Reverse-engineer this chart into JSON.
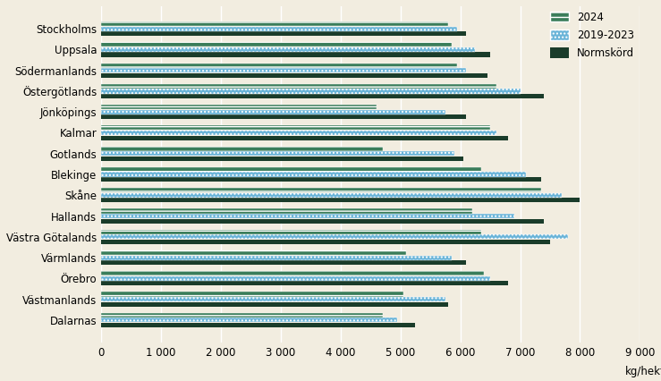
{
  "regions": [
    "Dalarnas",
    "Västmanlands",
    "Örebro",
    "Värmlands",
    "Västra Götalands",
    "Hallands",
    "Skåne",
    "Blekinge",
    "Gotlands",
    "Kalmar",
    "Jönköpings",
    "Östergötlands",
    "Södermanlands",
    "Uppsala",
    "Stockholms"
  ],
  "values_2024": [
    4700,
    5050,
    6400,
    5100,
    6350,
    6200,
    7350,
    6350,
    4700,
    6500,
    4600,
    6600,
    5950,
    5850,
    5800
  ],
  "values_2019_2023": [
    4950,
    5750,
    6500,
    5850,
    7800,
    6900,
    7700,
    7100,
    5900,
    6600,
    5750,
    7000,
    6100,
    6250,
    5950
  ],
  "values_normskörd": [
    5250,
    5800,
    6800,
    6100,
    7500,
    7400,
    8000,
    7350,
    6050,
    6800,
    6100,
    7400,
    6450,
    6500,
    6100
  ],
  "color_2024": "#3a7d5a",
  "color_2019_2023": "#6ab4d8",
  "color_normskörd": "#1a3c2a",
  "background_color": "#f2ede0",
  "xlabel": "kg/hektar",
  "xlim": [
    0,
    9000
  ],
  "xticks": [
    0,
    1000,
    2000,
    3000,
    4000,
    5000,
    6000,
    7000,
    8000,
    9000
  ],
  "xticklabels": [
    "0",
    "1 000",
    "2 000",
    "3 000",
    "4 000",
    "5 000",
    "6 000",
    "7 000",
    "8 000",
    "9 000"
  ],
  "legend_labels": [
    "2024",
    "2019-2023",
    "Normskörd"
  ]
}
